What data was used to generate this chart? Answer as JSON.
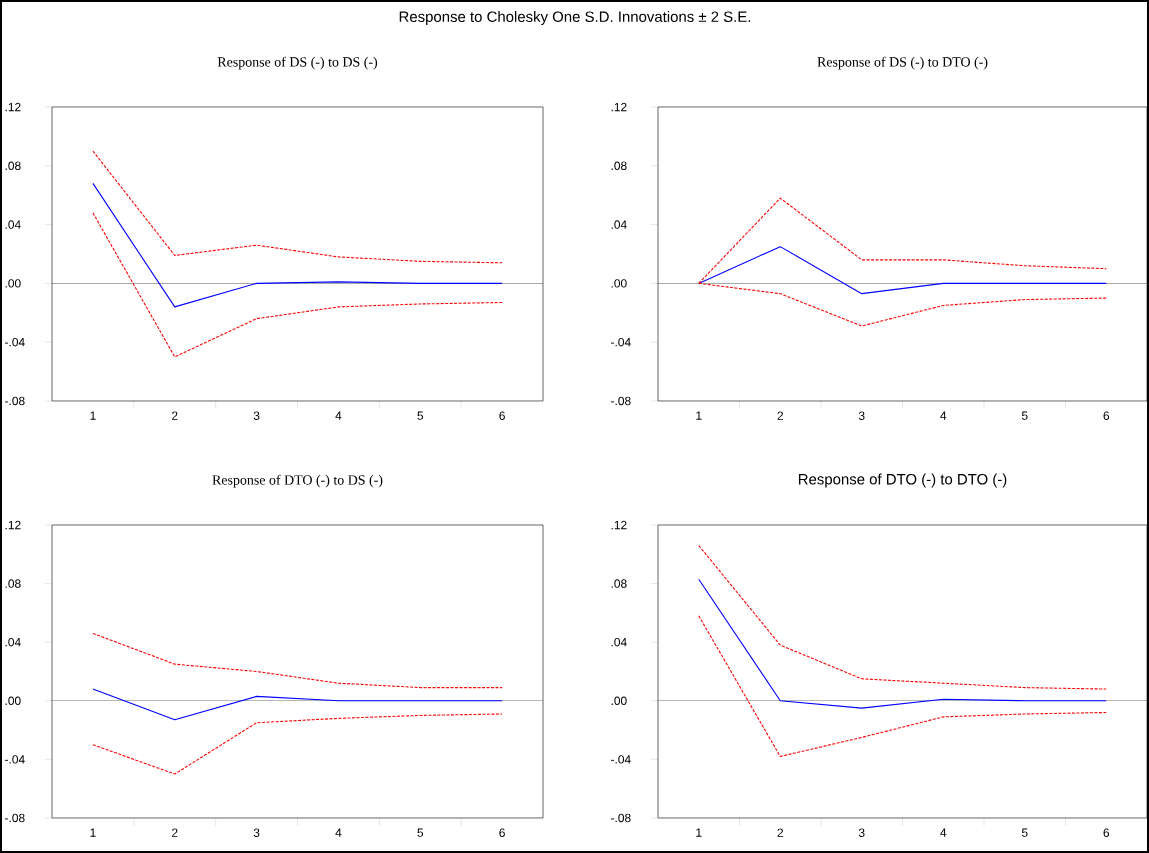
{
  "chart_data": [
    {
      "type": "other",
      "title": "Response to Cholesky One S.D. Innovations ± 2 S.E."
    },
    {
      "type": "line",
      "title": "Response of DS (-) to DS (-)",
      "categories": [
        "1",
        "2",
        "3",
        "4",
        "5",
        "6"
      ],
      "ylim": [
        -0.08,
        0.12
      ],
      "yticks": [
        {
          "value": -0.08,
          "label": "-.08"
        },
        {
          "value": -0.04,
          "label": "-.04"
        },
        {
          "value": 0,
          "label": ".00"
        },
        {
          "value": 0.04,
          "label": ".04"
        },
        {
          "value": 0.08,
          "label": ".08"
        },
        {
          "value": 0.12,
          "label": ".12"
        }
      ],
      "ref_lines": [
        {
          "axis": "y",
          "value": 0,
          "color": "#000000"
        }
      ],
      "series": [
        {
          "color": "#0000ff",
          "line_style": "solid",
          "values": [
            0.068,
            -0.016,
            0,
            0.001,
            0,
            0
          ]
        },
        {
          "color": "#ff0000",
          "line_style": "dashed",
          "values": [
            0.09,
            0.019,
            0.026,
            0.018,
            0.015,
            0.014
          ]
        },
        {
          "color": "#ff0000",
          "line_style": "dashed",
          "values": [
            0.048,
            -0.05,
            -0.024,
            -0.016,
            -0.014,
            -0.013
          ]
        }
      ]
    },
    {
      "type": "line",
      "title": "Response of DS (-) to DTO (-)",
      "categories": [
        "1",
        "2",
        "3",
        "4",
        "5",
        "6"
      ],
      "ylim": [
        -0.08,
        0.12
      ],
      "yticks": [
        {
          "value": -0.08,
          "label": "-.08"
        },
        {
          "value": -0.04,
          "label": "-.04"
        },
        {
          "value": 0,
          "label": ".00"
        },
        {
          "value": 0.04,
          "label": ".04"
        },
        {
          "value": 0.08,
          "label": ".08"
        },
        {
          "value": 0.12,
          "label": ".12"
        }
      ],
      "ref_lines": [
        {
          "axis": "y",
          "value": 0,
          "color": "#000000"
        }
      ],
      "series": [
        {
          "color": "#0000ff",
          "line_style": "solid",
          "values": [
            0,
            0.025,
            -0.007,
            0,
            0,
            0
          ]
        },
        {
          "color": "#ff0000",
          "line_style": "dashed",
          "values": [
            0,
            0.058,
            0.016,
            0.016,
            0.012,
            0.01
          ]
        },
        {
          "color": "#ff0000",
          "line_style": "dashed",
          "values": [
            0,
            -0.007,
            -0.029,
            -0.015,
            -0.011,
            -0.01
          ]
        }
      ]
    },
    {
      "type": "line",
      "title": "Response of DTO (-) to DS (-)",
      "categories": [
        "1",
        "2",
        "3",
        "4",
        "5",
        "6"
      ],
      "ylim": [
        -0.08,
        0.12
      ],
      "yticks": [
        {
          "value": -0.08,
          "label": "-.08"
        },
        {
          "value": -0.04,
          "label": "-.04"
        },
        {
          "value": 0,
          "label": ".00"
        },
        {
          "value": 0.04,
          "label": ".04"
        },
        {
          "value": 0.08,
          "label": ".08"
        },
        {
          "value": 0.12,
          "label": ".12"
        }
      ],
      "ref_lines": [
        {
          "axis": "y",
          "value": 0,
          "color": "#000000"
        }
      ],
      "series": [
        {
          "color": "#0000ff",
          "line_style": "solid",
          "values": [
            0.008,
            -0.013,
            0.003,
            0,
            0,
            0
          ]
        },
        {
          "color": "#ff0000",
          "line_style": "dashed",
          "values": [
            0.046,
            0.025,
            0.02,
            0.012,
            0.009,
            0.009
          ]
        },
        {
          "color": "#ff0000",
          "line_style": "dashed",
          "values": [
            -0.03,
            -0.05,
            -0.015,
            -0.012,
            -0.01,
            -0.009
          ]
        }
      ]
    },
    {
      "type": "line",
      "title": "Response of DTO (-) to DTO (-)",
      "categories": [
        "1",
        "2",
        "3",
        "4",
        "5",
        "6"
      ],
      "ylim": [
        -0.08,
        0.12
      ],
      "yticks": [
        {
          "value": -0.08,
          "label": "-.08"
        },
        {
          "value": -0.04,
          "label": "-.04"
        },
        {
          "value": 0,
          "label": ".00"
        },
        {
          "value": 0.04,
          "label": ".04"
        },
        {
          "value": 0.08,
          "label": ".08"
        },
        {
          "value": 0.12,
          "label": ".12"
        }
      ],
      "ref_lines": [
        {
          "axis": "y",
          "value": 0,
          "color": "#000000"
        }
      ],
      "series": [
        {
          "color": "#0000ff",
          "line_style": "solid",
          "values": [
            0.083,
            0,
            -0.005,
            0.001,
            0,
            0
          ]
        },
        {
          "color": "#ff0000",
          "line_style": "dashed",
          "values": [
            0.106,
            0.038,
            0.015,
            0.012,
            0.009,
            0.008
          ]
        },
        {
          "color": "#ff0000",
          "line_style": "dashed",
          "values": [
            0.058,
            -0.038,
            -0.025,
            -0.011,
            -0.009,
            -0.008
          ]
        }
      ]
    }
  ]
}
